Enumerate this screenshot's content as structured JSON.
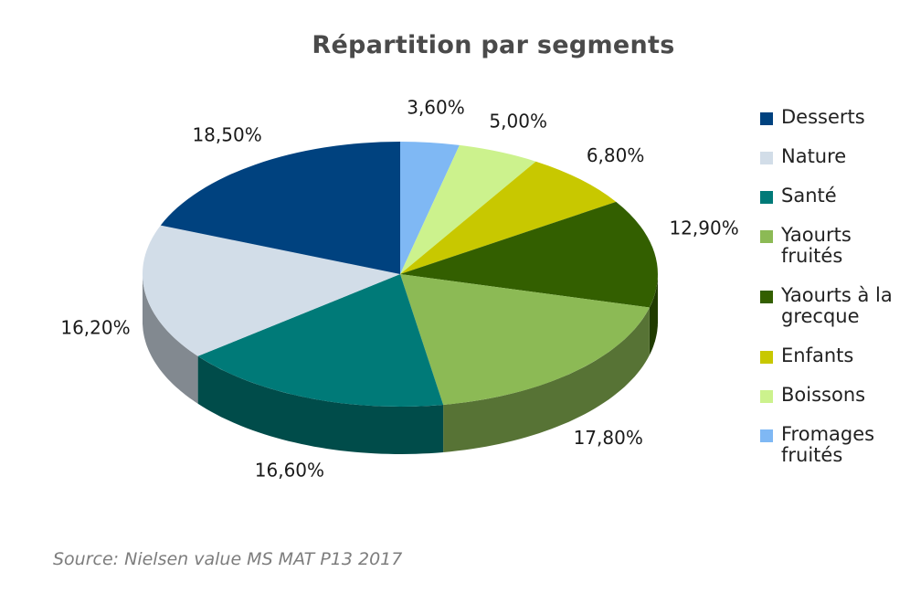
{
  "chart_data": {
    "type": "pie",
    "title": "Répartition par segments",
    "slices": [
      {
        "name": "Fromages fruités",
        "value": 3.6,
        "label": "3,60%",
        "color": "#7fb8f4"
      },
      {
        "name": "Boissons",
        "value": 5.0,
        "label": "5,00%",
        "color": "#ccf28d"
      },
      {
        "name": "Enfants",
        "value": 6.8,
        "label": "6,80%",
        "color": "#c8c800"
      },
      {
        "name": "Yaourts à la grecque",
        "value": 12.9,
        "label": "12,90%",
        "color": "#335f00"
      },
      {
        "name": "Yaourts fruités",
        "value": 17.8,
        "label": "17,80%",
        "color": "#8cba55"
      },
      {
        "name": "Santé",
        "value": 16.6,
        "label": "16,60%",
        "color": "#007a78"
      },
      {
        "name": "Nature",
        "value": 16.2,
        "label": "16,20%",
        "color": "#d2dde8"
      },
      {
        "name": "Desserts",
        "value": 18.5,
        "label": "18,50%",
        "color": "#00427f"
      }
    ],
    "legend": {
      "position": "right",
      "items": [
        {
          "label": "Desserts",
          "color": "#00427f"
        },
        {
          "label": "Nature",
          "color": "#d2dde8"
        },
        {
          "label": "Santé",
          "color": "#007a78"
        },
        {
          "label": "Yaourts fruités",
          "color": "#8cba55"
        },
        {
          "label": "Yaourts à la grecque",
          "color": "#335f00"
        },
        {
          "label": "Enfants",
          "color": "#c8c800"
        },
        {
          "label": "Boissons",
          "color": "#ccf28d"
        },
        {
          "label": "Fromages fruités",
          "color": "#7fb8f4"
        }
      ]
    },
    "source": "Source: Nielsen value MS MAT P13 2017"
  }
}
